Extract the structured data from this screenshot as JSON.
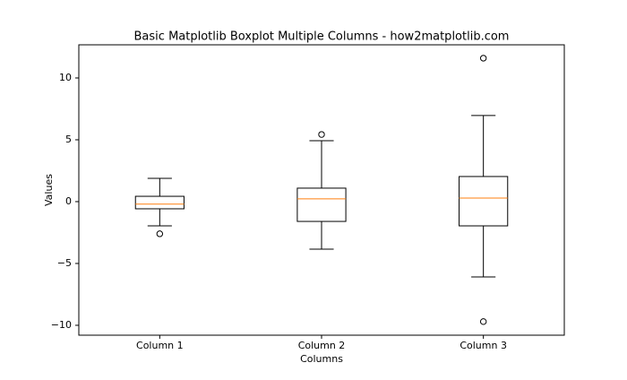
{
  "chart_data": {
    "type": "boxplot",
    "title": "Basic Matplotlib Boxplot Multiple Columns - how2matplotlib.com",
    "x_label": "Columns",
    "y_label": "Values",
    "categories": [
      "Column 1",
      "Column 2",
      "Column 3"
    ],
    "boxes": [
      {
        "whislo": -1.96,
        "q1": -0.58,
        "med": -0.2,
        "q3": 0.43,
        "whishi": 1.88,
        "fliers": [
          -2.6
        ]
      },
      {
        "whislo": -3.84,
        "q1": -1.6,
        "med": 0.22,
        "q3": 1.09,
        "whishi": 4.93,
        "fliers": [
          5.43
        ]
      },
      {
        "whislo": -6.09,
        "q1": -1.96,
        "med": 0.29,
        "q3": 2.03,
        "whishi": 6.96,
        "fliers": [
          11.6,
          -9.7
        ]
      }
    ],
    "box_color": "#000000",
    "median_color": "#ff7f0e",
    "ylim": [
      -10.8,
      12.68
    ],
    "yticks": [
      {
        "value": -10,
        "label": "−10"
      },
      {
        "value": -5,
        "label": "−5"
      },
      0,
      5,
      10
    ],
    "grid": false
  }
}
